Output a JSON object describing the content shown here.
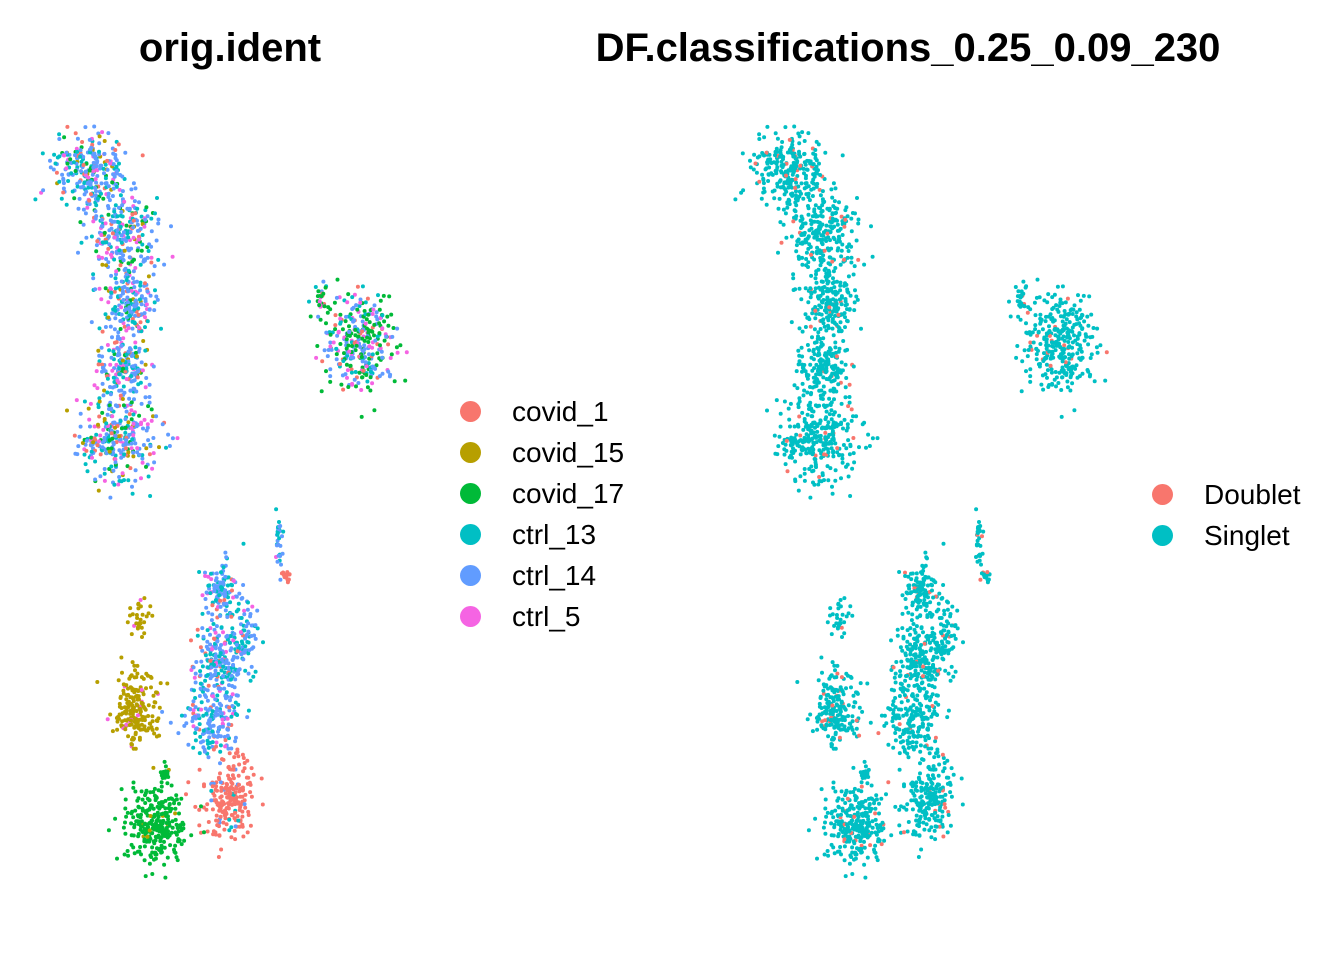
{
  "chart_data": [
    {
      "type": "scatter",
      "title": "orig.ident",
      "legend": {
        "position": "right",
        "entries": [
          "covid_1",
          "covid_15",
          "covid_17",
          "ctrl_13",
          "ctrl_14",
          "ctrl_5"
        ]
      },
      "colors": {
        "covid_1": "#F8766D",
        "covid_15": "#B79F00",
        "covid_17": "#00BA38",
        "ctrl_13": "#00BFC4",
        "ctrl_14": "#619CFF",
        "ctrl_5": "#F564E3"
      },
      "axes": "none",
      "grid": false,
      "clusters": [
        {
          "name": "upper-left elongated cluster",
          "mix": {
            "ctrl_14": 0.42,
            "ctrl_13": 0.2,
            "ctrl_5": 0.14,
            "covid_17": 0.1,
            "covid_1": 0.08,
            "covid_15": 0.06
          }
        },
        {
          "name": "upper-right round cluster",
          "mix": {
            "covid_17": 0.35,
            "ctrl_14": 0.3,
            "ctrl_5": 0.15,
            "ctrl_13": 0.1,
            "covid_1": 0.1
          }
        },
        {
          "name": "lower-central cluster",
          "mix": {
            "ctrl_14": 0.55,
            "ctrl_13": 0.3,
            "ctrl_5": 0.08,
            "covid_1": 0.07
          }
        },
        {
          "name": "lower covid_1 cluster",
          "mix": {
            "covid_1": 0.9,
            "ctrl_13": 0.05,
            "ctrl_14": 0.05
          }
        },
        {
          "name": "lower covid_15 cluster",
          "mix": {
            "covid_15": 0.95,
            "ctrl_5": 0.05
          }
        },
        {
          "name": "lower covid_17 cluster",
          "mix": {
            "covid_17": 0.95,
            "covid_15": 0.05
          }
        }
      ]
    },
    {
      "type": "scatter",
      "title": "DF.classifications_0.25_0.09_230",
      "legend": {
        "position": "right",
        "entries": [
          "Doublet",
          "Singlet"
        ]
      },
      "colors": {
        "Doublet": "#F8766D",
        "Singlet": "#00BFC4"
      },
      "axes": "none",
      "grid": false,
      "doublet_fraction": 0.05
    }
  ],
  "left": {
    "title": "orig.ident",
    "legend": [
      {
        "label": "covid_1",
        "color": "#F8766D"
      },
      {
        "label": "covid_15",
        "color": "#B79F00"
      },
      {
        "label": "covid_17",
        "color": "#00BA38"
      },
      {
        "label": "ctrl_13",
        "color": "#00BFC4"
      },
      {
        "label": "ctrl_14",
        "color": "#619CFF"
      },
      {
        "label": "ctrl_5",
        "color": "#F564E3"
      }
    ]
  },
  "right": {
    "title": "DF.classifications_0.25_0.09_230",
    "legend": [
      {
        "label": "Doublet",
        "color": "#F8766D"
      },
      {
        "label": "Singlet",
        "color": "#00BFC4"
      }
    ]
  }
}
